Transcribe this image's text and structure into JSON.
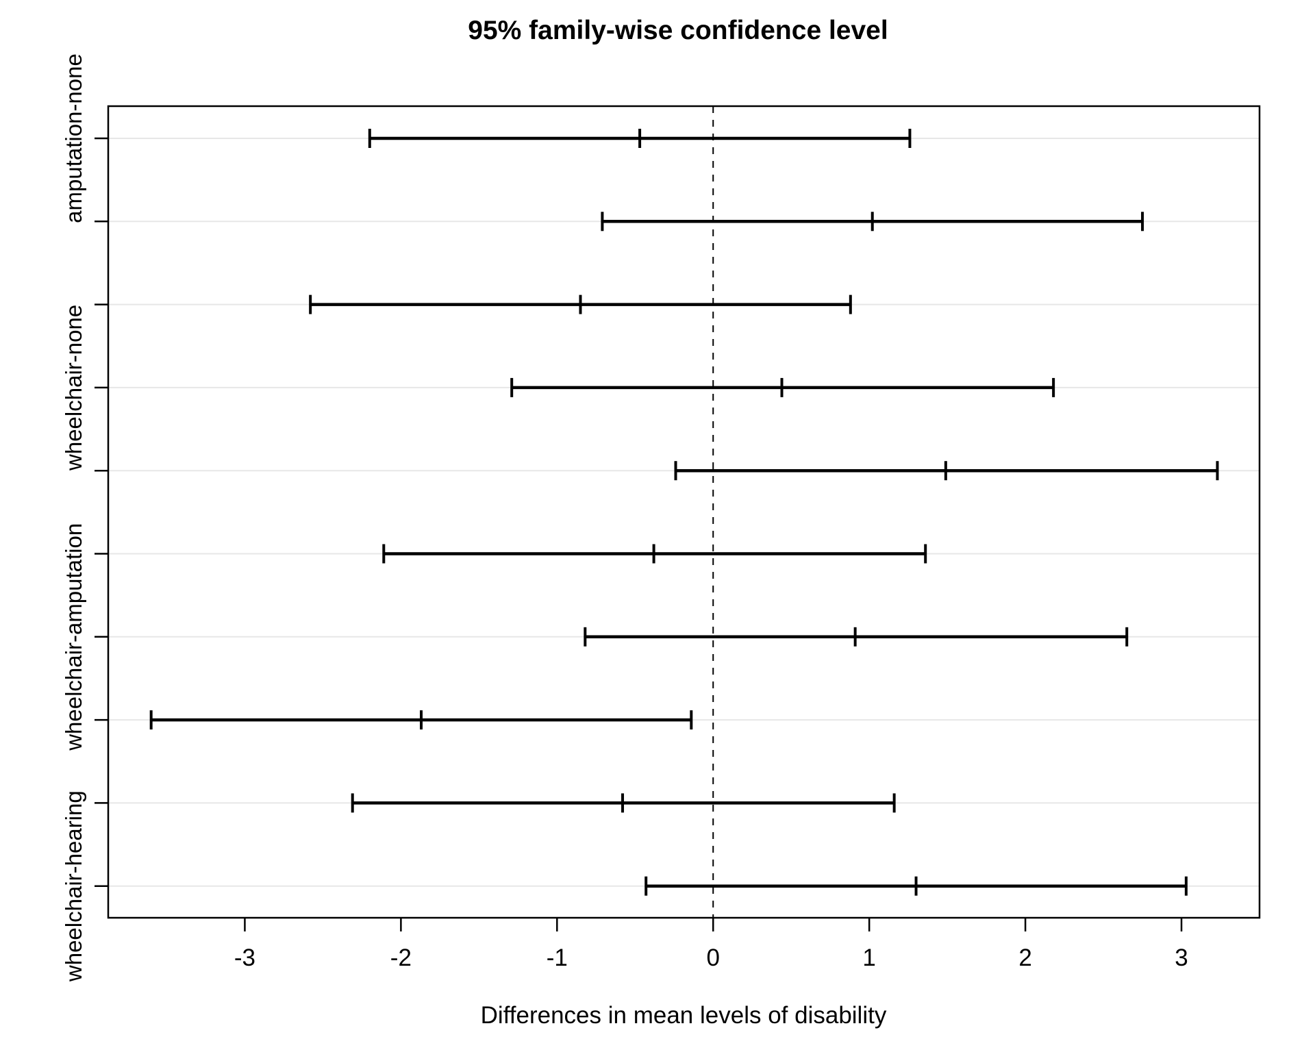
{
  "title": "95% family-wise confidence level",
  "x_axis_label": "Differences in mean levels of disability",
  "colors": {
    "background": "#ffffff",
    "interval": "#000000",
    "axis": "#000000",
    "grid": "#e7e7e7",
    "zero_line": "#000000",
    "text": "#000000"
  },
  "chart_data": {
    "type": "scatter",
    "subtype": "horizontal-confidence-intervals",
    "title": "95% family-wise confidence level",
    "xlabel": "Differences in mean levels of disability",
    "ylabel": "",
    "x_ticks": [
      -3,
      -2,
      -1,
      0,
      1,
      2,
      3
    ],
    "xlim": [
      -3.875,
      3.5
    ],
    "grid": "horizontal-light-gridlines",
    "legend": "none",
    "zero_reference_line": {
      "x": 0,
      "style": "dashed"
    },
    "rows": [
      {
        "label": "amputation-none",
        "lower": -2.2,
        "center": -0.47,
        "upper": 1.26
      },
      {
        "label": "",
        "lower": -0.71,
        "center": 1.02,
        "upper": 2.75
      },
      {
        "label": "",
        "lower": -2.58,
        "center": -0.85,
        "upper": 0.88
      },
      {
        "label": "wheelchair-none",
        "lower": -1.29,
        "center": 0.44,
        "upper": 2.18
      },
      {
        "label": "",
        "lower": -0.24,
        "center": 1.49,
        "upper": 3.23
      },
      {
        "label": "",
        "lower": -2.11,
        "center": -0.38,
        "upper": 1.36
      },
      {
        "label": "wheelchair-amputation",
        "lower": -0.82,
        "center": 0.91,
        "upper": 2.65
      },
      {
        "label": "",
        "lower": -3.6,
        "center": -1.87,
        "upper": -0.14
      },
      {
        "label": "",
        "lower": -2.31,
        "center": -0.58,
        "upper": 1.16
      },
      {
        "label": "wheelchair-hearing",
        "lower": -0.43,
        "center": 1.3,
        "upper": 3.03
      }
    ]
  }
}
